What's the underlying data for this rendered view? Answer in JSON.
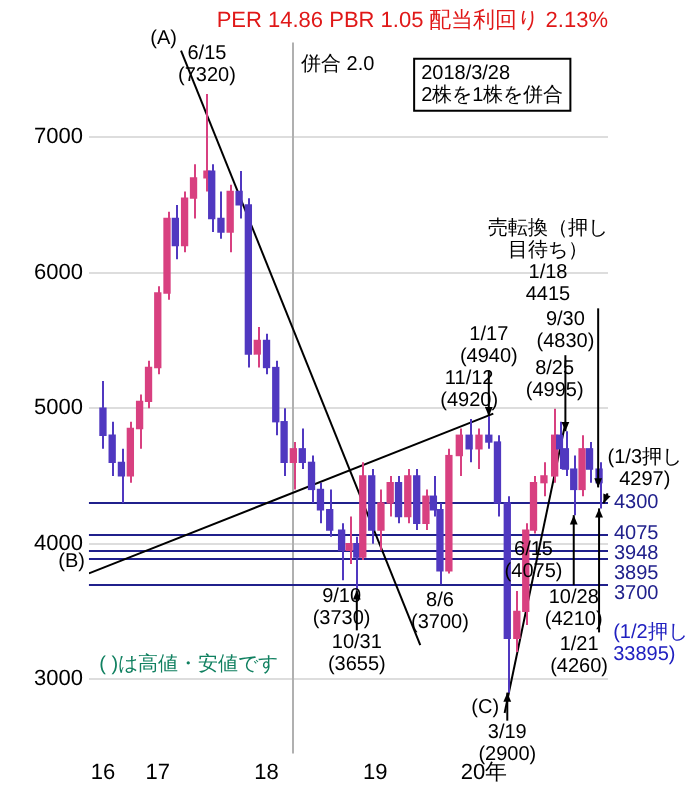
{
  "chart_data": {
    "type": "candlestick",
    "title": "PER 14.86 PBR 1.05 配当利回り 2.13%",
    "x": [
      "2016-07",
      "2016-08",
      "2016-09",
      "2016-10",
      "2016-11",
      "2016-12",
      "2017-01",
      "2017-02",
      "2017-03",
      "2017-04",
      "2017-05",
      "2017-06-15",
      "2017-07",
      "2017-08",
      "2017-09",
      "2017-10",
      "2017-11",
      "2017-12",
      "2018-01",
      "2018-02",
      "2018-03",
      "2018-04",
      "2018-05",
      "2018-06",
      "2018-07",
      "2018-08",
      "2018-09-10",
      "2018-10-05",
      "2018-10-31",
      "2018-11-20",
      "2018-12-20",
      "2019-01-20",
      "2019-02-20",
      "2019-03-20",
      "2019-04-20",
      "2019-05-20",
      "2019-06-20",
      "2019-07-15",
      "2019-08-06",
      "2019-09-05",
      "2019-10-10",
      "2019-11-12",
      "2019-12-15",
      "2020-01-17",
      "2020-02-15",
      "2020-03-19",
      "2020-04-20",
      "2020-05-20",
      "2020-06-15",
      "2020-07-20",
      "2020-08-25",
      "2020-09-10",
      "2020-09-30",
      "2020-10-28",
      "2020-11-25",
      "2020-12-20",
      "2021-01-21"
    ],
    "ohlc": [
      [
        5000,
        5200,
        4700,
        4800
      ],
      [
        4800,
        4900,
        4500,
        4600
      ],
      [
        4600,
        4700,
        4300,
        4500
      ],
      [
        4500,
        4900,
        4450,
        4850
      ],
      [
        4850,
        5100,
        4700,
        5050
      ],
      [
        5050,
        5350,
        5000,
        5300
      ],
      [
        5300,
        5900,
        5250,
        5850
      ],
      [
        5850,
        6450,
        5800,
        6400
      ],
      [
        6400,
        6500,
        6100,
        6200
      ],
      [
        6200,
        6600,
        6150,
        6550
      ],
      [
        6550,
        6800,
        6400,
        6700
      ],
      [
        6700,
        7320,
        6600,
        6750
      ],
      [
        6750,
        6800,
        6300,
        6400
      ],
      [
        6400,
        6600,
        6250,
        6300
      ],
      [
        6300,
        6650,
        6150,
        6600
      ],
      [
        6600,
        6750,
        6400,
        6500
      ],
      [
        6500,
        6550,
        5300,
        5400
      ],
      [
        5400,
        5600,
        5300,
        5500
      ],
      [
        5500,
        5550,
        5250,
        5300
      ],
      [
        5300,
        5350,
        4800,
        4900
      ],
      [
        4900,
        5000,
        4500,
        4600
      ],
      [
        4600,
        4750,
        4400,
        4700
      ],
      [
        4700,
        4850,
        4550,
        4600
      ],
      [
        4600,
        4650,
        4300,
        4400
      ],
      [
        4400,
        4450,
        4150,
        4250
      ],
      [
        4250,
        4400,
        4050,
        4100
      ],
      [
        4100,
        4150,
        3730,
        3950
      ],
      [
        3950,
        4200,
        3850,
        4000
      ],
      [
        4000,
        4050,
        3655,
        3900
      ],
      [
        3900,
        4600,
        3880,
        4500
      ],
      [
        4500,
        4550,
        4000,
        4100
      ],
      [
        4100,
        4400,
        3950,
        4300
      ],
      [
        4300,
        4500,
        4200,
        4450
      ],
      [
        4450,
        4500,
        4150,
        4200
      ],
      [
        4200,
        4550,
        4150,
        4500
      ],
      [
        4500,
        4550,
        4100,
        4150
      ],
      [
        4150,
        4400,
        4100,
        4350
      ],
      [
        4350,
        4500,
        4200,
        4250
      ],
      [
        4250,
        4300,
        3700,
        3800
      ],
      [
        3800,
        4700,
        3780,
        4650
      ],
      [
        4650,
        4850,
        4500,
        4800
      ],
      [
        4800,
        4920,
        4600,
        4700
      ],
      [
        4700,
        4850,
        4550,
        4800
      ],
      [
        4800,
        4940,
        4700,
        4750
      ],
      [
        4750,
        4800,
        4200,
        4300
      ],
      [
        4300,
        4350,
        2900,
        3300
      ],
      [
        3300,
        3650,
        3200,
        3500
      ],
      [
        3500,
        4150,
        3400,
        4100
      ],
      [
        4100,
        4500,
        4075,
        4450
      ],
      [
        4450,
        4600,
        4350,
        4500
      ],
      [
        4500,
        4995,
        4450,
        4800
      ],
      [
        4800,
        4900,
        4550,
        4700
      ],
      [
        4700,
        4830,
        4500,
        4550
      ],
      [
        4550,
        4650,
        4210,
        4400
      ],
      [
        4400,
        4800,
        4350,
        4700
      ],
      [
        4700,
        4750,
        4450,
        4550
      ],
      [
        4550,
        4600,
        4260,
        4450
      ]
    ],
    "colors": [
      "#5038c0",
      "#5038c0",
      "#5038c0",
      "#d84080",
      "#d84080",
      "#d84080",
      "#d84080",
      "#d84080",
      "#5038c0",
      "#d84080",
      "#d84080",
      "#d84080",
      "#5038c0",
      "#5038c0",
      "#d84080",
      "#5038c0",
      "#5038c0",
      "#d84080",
      "#5038c0",
      "#5038c0",
      "#5038c0",
      "#d84080",
      "#5038c0",
      "#5038c0",
      "#5038c0",
      "#5038c0",
      "#5038c0",
      "#d84080",
      "#5038c0",
      "#d84080",
      "#5038c0",
      "#d84080",
      "#d84080",
      "#5038c0",
      "#d84080",
      "#5038c0",
      "#d84080",
      "#5038c0",
      "#5038c0",
      "#d84080",
      "#d84080",
      "#5038c0",
      "#d84080",
      "#5038c0",
      "#5038c0",
      "#5038c0",
      "#d84080",
      "#d84080",
      "#d84080",
      "#d84080",
      "#d84080",
      "#5038c0",
      "#5038c0",
      "#5038c0",
      "#d84080",
      "#5038c0",
      "#5038c0"
    ],
    "series": [
      {
        "type": "line",
        "color": "#000000",
        "x": [
          "2017-03-20",
          "2019-06-01"
        ],
        "values": [
          7640,
          3250
        ]
      },
      {
        "type": "line",
        "color": "#000000",
        "x": [
          "2016-05-15",
          "2020-02-01"
        ],
        "values": [
          3780,
          4960
        ]
      },
      {
        "type": "line",
        "color": "#000000",
        "x": [
          "2020-03-10",
          "2020-10-01"
        ],
        "values": [
          2750,
          4900
        ]
      }
    ],
    "xlim": [
      "2016-05-15",
      "2021-02-20"
    ],
    "xticks": [
      {
        "value": "2016-07",
        "label": "16"
      },
      {
        "value": "2017-01",
        "label": "17"
      },
      {
        "value": "2018-01",
        "label": "18"
      },
      {
        "value": "2019-01",
        "label": "19"
      },
      {
        "value": "2020-01",
        "label": "20年"
      }
    ],
    "ylim": [
      2450,
      7700
    ],
    "yticks": [
      3000,
      4000,
      5000,
      6000,
      7000
    ],
    "grid": "y",
    "ref_lines": [
      {
        "axis": "x",
        "value": "2018-03-28",
        "label": "併合 2.0",
        "color": "#b0b0b0"
      },
      {
        "axis": "y",
        "value": 4300,
        "label": "4300",
        "color": "#20208c"
      },
      {
        "axis": "y",
        "value": 4075,
        "label": "4075",
        "color": "#20208c"
      },
      {
        "axis": "y",
        "value": 3948,
        "label": "3948",
        "color": "#20208c"
      },
      {
        "axis": "y",
        "value": 3895,
        "label": "3895",
        "color": "#20208c"
      },
      {
        "axis": "y",
        "value": 3700,
        "label": "3700",
        "color": "#20208c"
      }
    ],
    "annotations": [
      "2018/3/28\n2株を1株を併合",
      "( )は高値・安値です",
      {
        "text": "(A)",
        "x": "2017-03-20",
        "y": 7640
      },
      {
        "text": "(B)",
        "x": "2016-05-15",
        "y": 3780
      },
      {
        "text": "(C)",
        "x": "2020-03-05",
        "y": 2700
      },
      {
        "text": "6/15\n(7320)",
        "x": "2017-06-15",
        "y": 7320
      },
      {
        "text": "9/10\n(3730)",
        "x": "2018-09-10",
        "y": 3730
      },
      {
        "text": "10/31\n(3655)",
        "x": "2018-10-31",
        "y": 3655
      },
      {
        "text": "8/6\n(3700)",
        "x": "2019-08-06",
        "y": 3700
      },
      {
        "text": "11/12\n(4920)",
        "x": "2019-11-12",
        "y": 4920
      },
      {
        "text": "1/17\n(4940)",
        "x": "2020-01-17",
        "y": 4940
      },
      {
        "text": "3/19\n(2900)",
        "x": "2020-03-19",
        "y": 2900
      },
      {
        "text": "6/15\n(4075)",
        "x": "2020-06-15",
        "y": 4075
      },
      {
        "text": "8/25\n(4995)",
        "x": "2020-08-25",
        "y": 4995
      },
      {
        "text": "9/30\n(4830)",
        "x": "2020-09-30",
        "y": 4830
      },
      {
        "text": "10/28\n(4210)",
        "x": "2020-10-28",
        "y": 4210
      },
      {
        "text": "1/21\n(4260)",
        "x": "2021-01-21",
        "y": 4260
      },
      {
        "text": "売転換（押し目待ち）\n1/18\n4415",
        "x": "2021-01-18",
        "y": 4415
      },
      {
        "text": "(1/3押し\n4297)",
        "x": "2021-02-05",
        "y": 4297
      },
      "(1/2押し\n33895)"
    ]
  }
}
